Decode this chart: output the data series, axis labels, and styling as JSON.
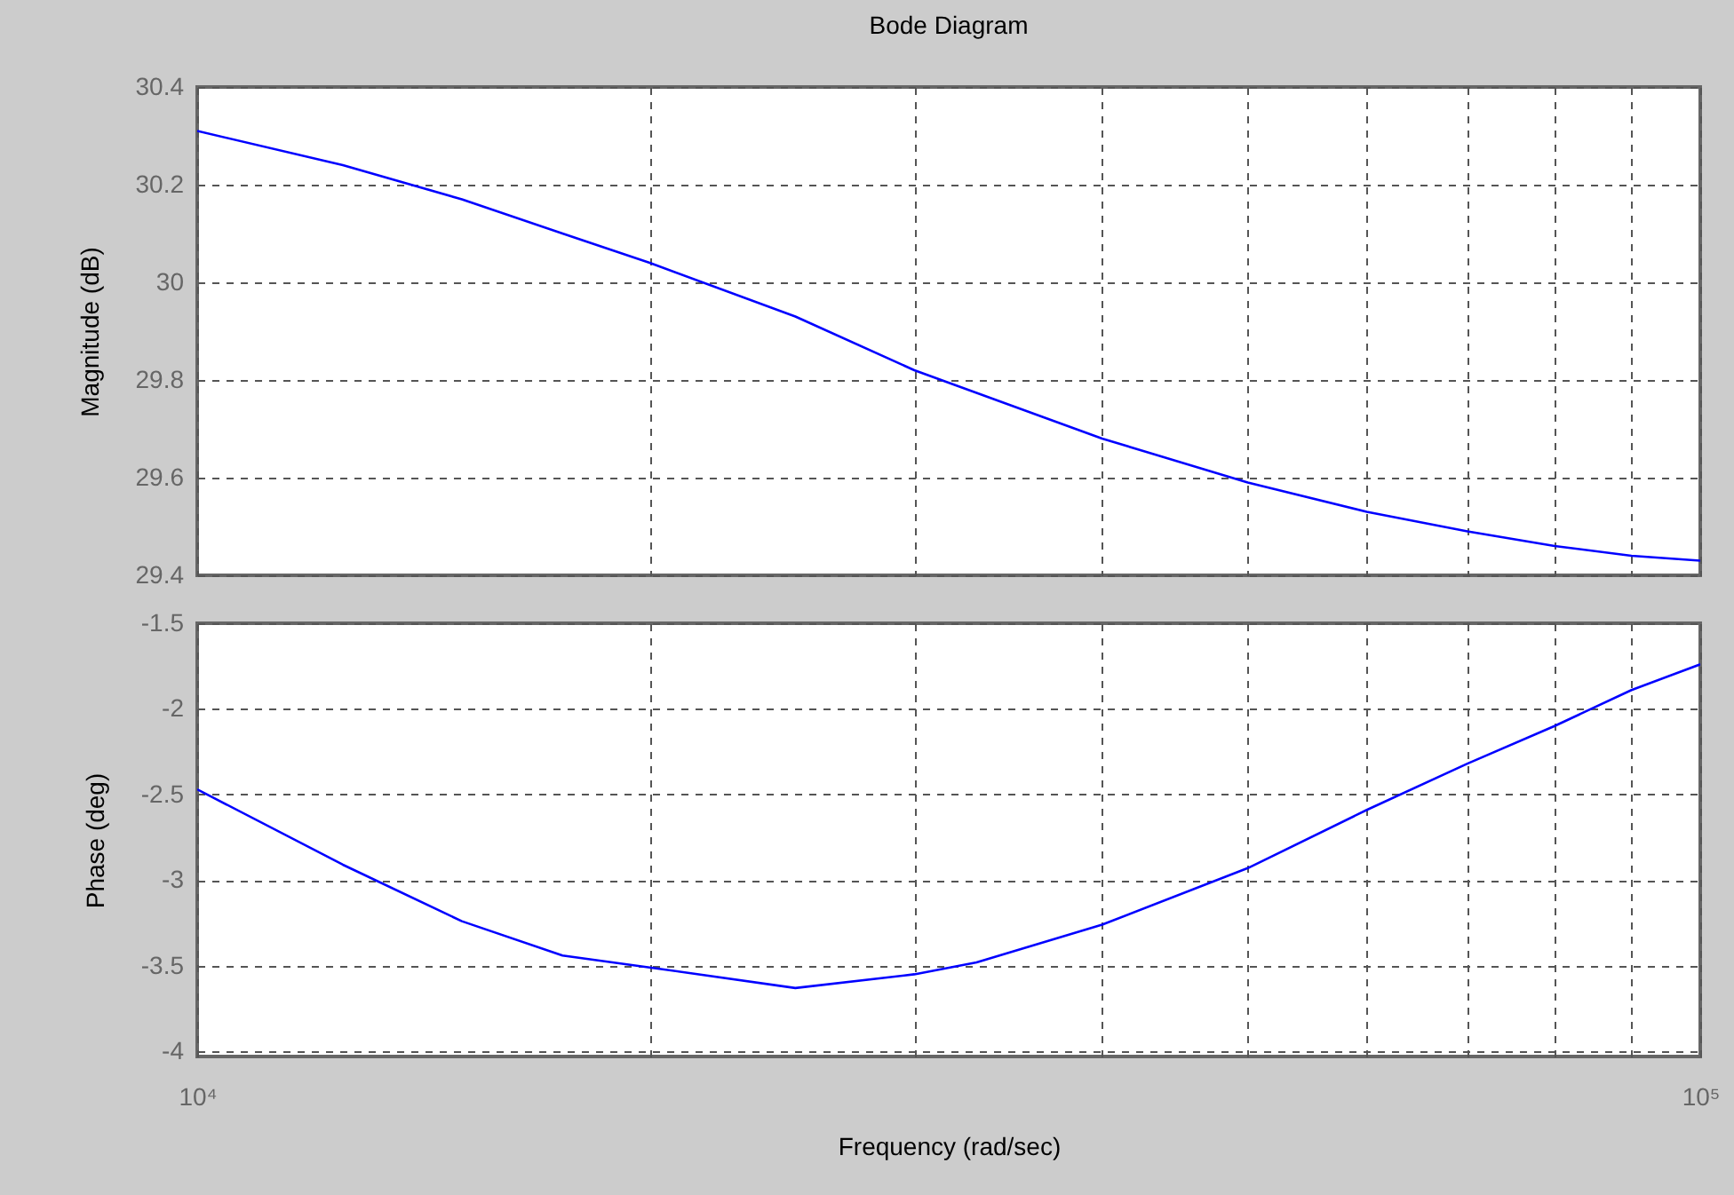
{
  "chart_data": [
    {
      "type": "line",
      "title": "Bode Diagram",
      "ylabel": "Magnitude (dB)",
      "log": "x",
      "grid": true,
      "line_style": "solid",
      "tick_labels": "y",
      "x": [
        10000,
        12500,
        15000,
        17500,
        20000,
        25000,
        30000,
        40000,
        50000,
        60000,
        70000,
        80000,
        90000,
        100000
      ],
      "series": [
        {
          "color": "#0000ff",
          "values": [
            30.31,
            30.24,
            30.17,
            30.1,
            30.04,
            29.93,
            29.82,
            29.68,
            29.59,
            29.53,
            29.49,
            29.46,
            29.44,
            29.43
          ]
        }
      ],
      "xlim": [
        10000,
        100000
      ],
      "xticks": [
        {
          "value": 10000,
          "label": null
        },
        {
          "value": 20000,
          "label": null
        },
        {
          "value": 30000,
          "label": null
        },
        {
          "value": 40000,
          "label": null
        },
        {
          "value": 50000,
          "label": null
        },
        {
          "value": 60000,
          "label": null
        },
        {
          "value": 70000,
          "label": null
        },
        {
          "value": 80000,
          "label": null
        },
        {
          "value": 90000,
          "label": null
        },
        {
          "value": 100000,
          "label": null
        }
      ],
      "ylim": [
        29.4,
        30.4
      ],
      "yticks": [
        29.4,
        29.6,
        29.8,
        30,
        30.2,
        30.4
      ]
    },
    {
      "type": "line",
      "xlabel": "Frequency  (rad/sec)",
      "ylabel": "Phase (deg)",
      "log": "x",
      "grid": true,
      "line_style": "solid",
      "x": [
        10000,
        12500,
        15000,
        17500,
        20000,
        25000,
        30000,
        33000,
        40000,
        50000,
        60000,
        70000,
        80000,
        90000,
        100000
      ],
      "series": [
        {
          "color": "#0000ff",
          "values": [
            -2.47,
            -2.91,
            -3.24,
            -3.44,
            -3.51,
            -3.63,
            -3.55,
            -3.48,
            -3.26,
            -2.93,
            -2.59,
            -2.32,
            -2.1,
            -1.89,
            -1.74
          ]
        }
      ],
      "xlim": [
        10000,
        100000
      ],
      "xticks": [
        {
          "value": 10000,
          "label": "10⁴"
        },
        {
          "value": 20000,
          "label": null
        },
        {
          "value": 30000,
          "label": null
        },
        {
          "value": 40000,
          "label": null
        },
        {
          "value": 50000,
          "label": null
        },
        {
          "value": 60000,
          "label": null
        },
        {
          "value": 70000,
          "label": null
        },
        {
          "value": 80000,
          "label": null
        },
        {
          "value": 90000,
          "label": null
        },
        {
          "value": 100000,
          "label": "10⁵"
        }
      ],
      "ylim": [
        -4.03,
        -1.5
      ],
      "yticks": [
        -4,
        -3.5,
        -3,
        -2.5,
        -2,
        -1.5
      ]
    }
  ]
}
